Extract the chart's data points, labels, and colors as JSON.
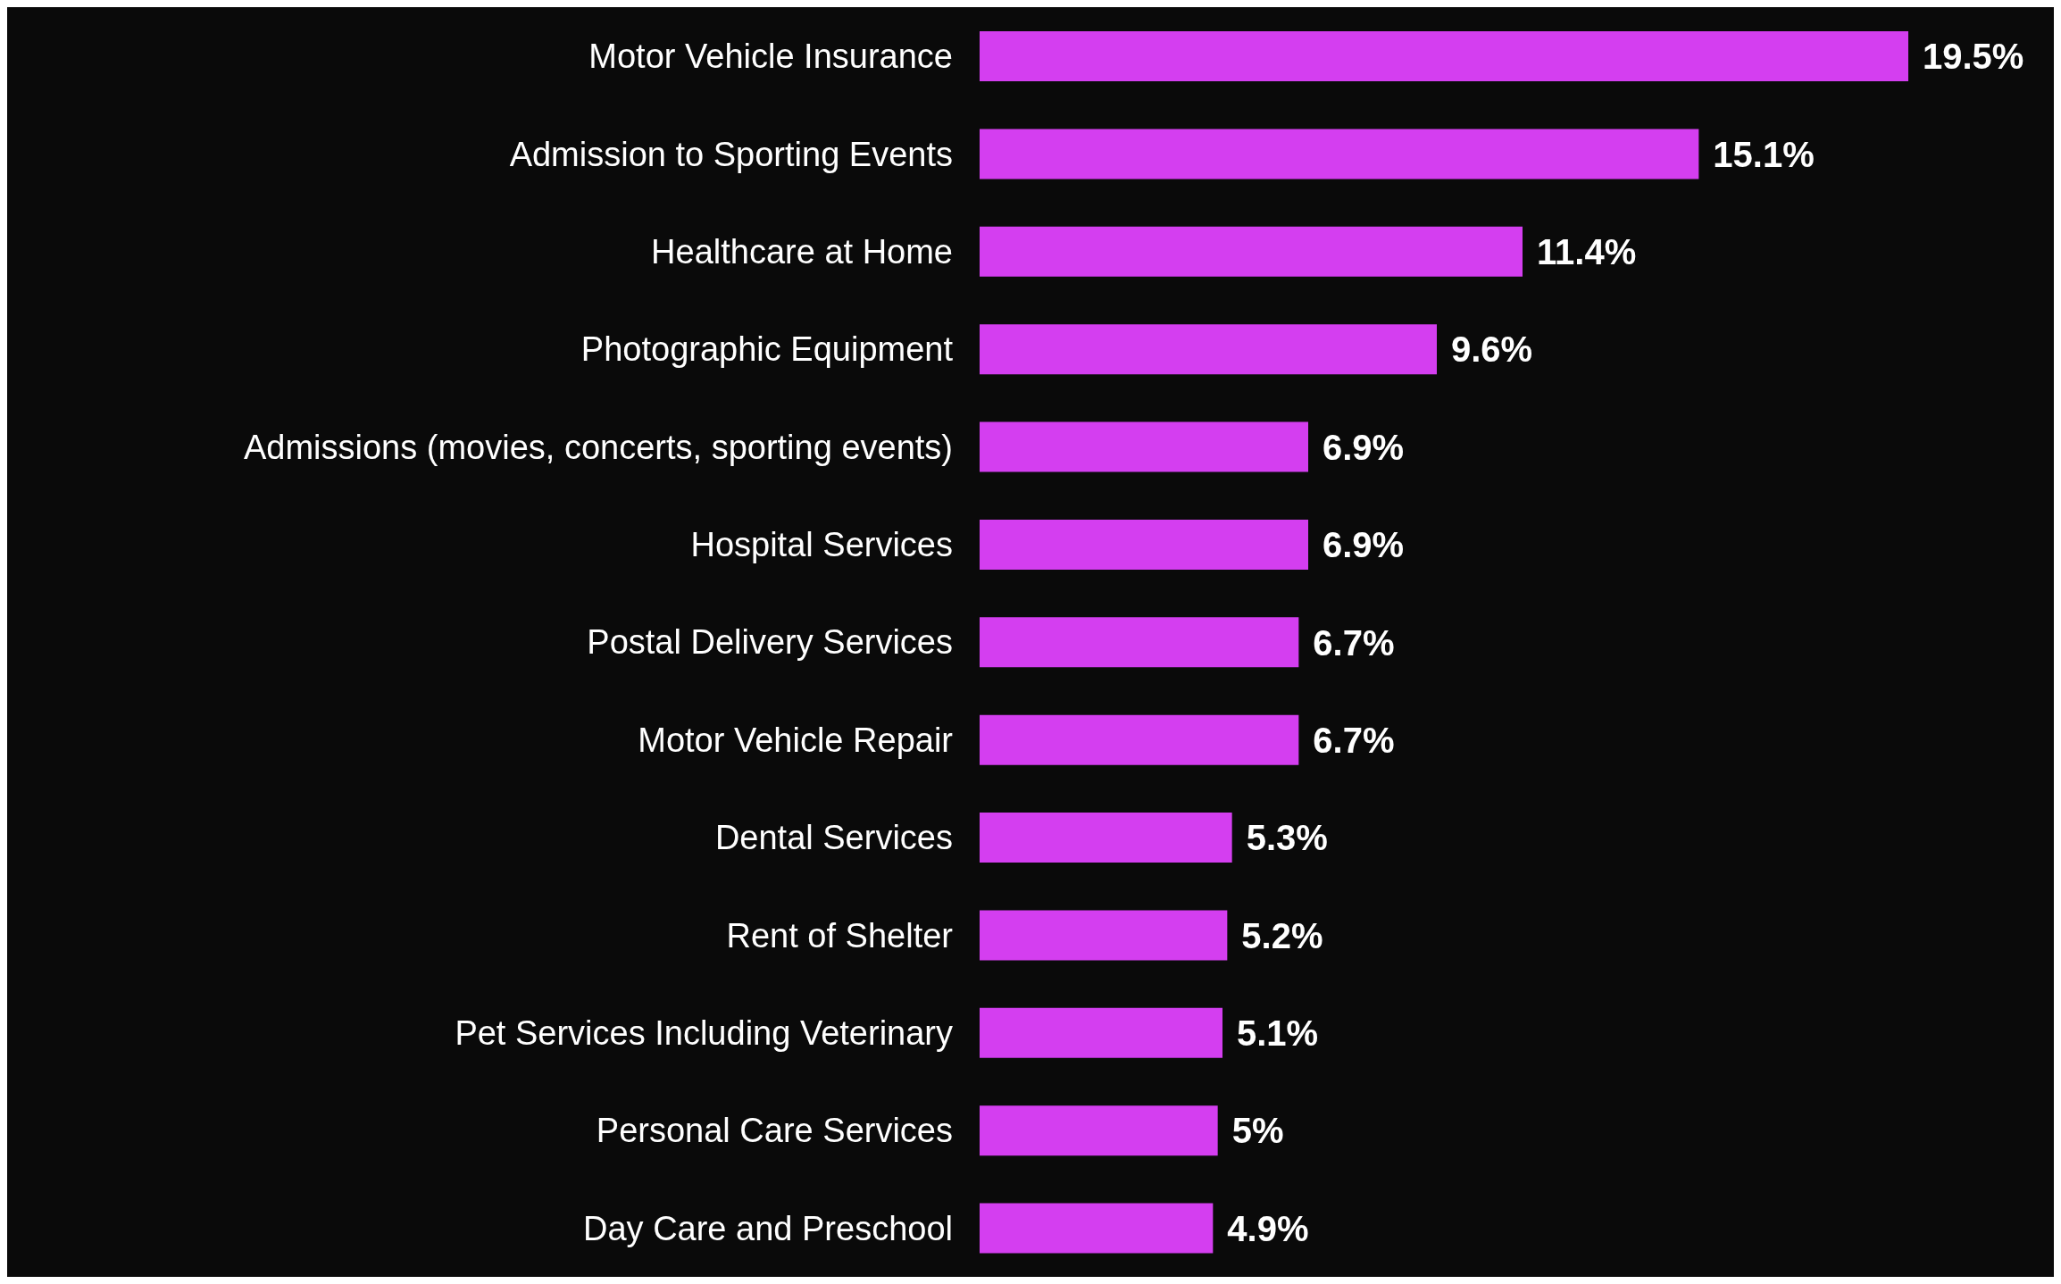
{
  "chart_data": {
    "type": "bar",
    "orientation": "horizontal",
    "color": "#d43ef0",
    "categories": [
      "Motor Vehicle Insurance",
      "Admission to Sporting Events",
      "Healthcare at Home",
      "Photographic Equipment",
      "Admissions (movies, concerts, sporting events)",
      "Hospital Services",
      "Postal Delivery Services",
      "Motor Vehicle Repair",
      "Dental Services",
      "Rent of Shelter",
      "Pet Services Including Veterinary",
      "Personal Care Services",
      "Day Care and Preschool"
    ],
    "values": [
      19.5,
      15.1,
      11.4,
      9.6,
      6.9,
      6.9,
      6.7,
      6.7,
      5.3,
      5.2,
      5.1,
      5,
      4.9
    ],
    "value_labels": [
      "19.5%",
      "15.1%",
      "11.4%",
      "9.6%",
      "6.9%",
      "6.9%",
      "6.7%",
      "6.7%",
      "5.3%",
      "5.2%",
      "5.1%",
      "5%",
      "4.9%"
    ]
  }
}
